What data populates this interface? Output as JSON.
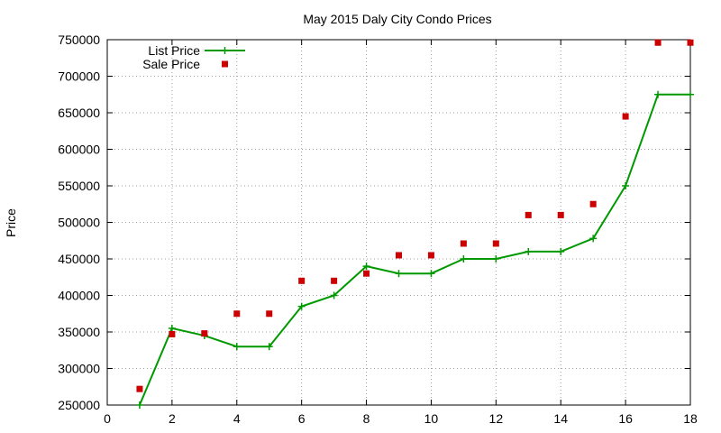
{
  "chart_data": {
    "type": "line",
    "title": "May 2015 Daly City Condo Prices",
    "xlabel": "",
    "ylabel": "Price",
    "xlim": [
      0,
      18
    ],
    "ylim": [
      250000,
      750000
    ],
    "x_ticks": [
      0,
      2,
      4,
      6,
      8,
      10,
      12,
      14,
      16,
      18
    ],
    "y_ticks": [
      250000,
      300000,
      350000,
      400000,
      450000,
      500000,
      550000,
      600000,
      650000,
      700000,
      750000
    ],
    "grid": true,
    "legend_position": "top-left",
    "series": [
      {
        "name": "List Price",
        "style": "line-with-plus-markers",
        "color": "#009900",
        "x": [
          1,
          2,
          3,
          4,
          5,
          6,
          7,
          8,
          9,
          10,
          11,
          12,
          13,
          14,
          15,
          16,
          17,
          18
        ],
        "values": [
          250000,
          355000,
          345000,
          330000,
          330000,
          385000,
          400000,
          440000,
          430000,
          430000,
          450000,
          450000,
          460000,
          460000,
          478000,
          550000,
          675000,
          675000
        ]
      },
      {
        "name": "Sale Price",
        "style": "square-points",
        "color": "#cc0000",
        "x": [
          1,
          2,
          3,
          4,
          5,
          6,
          7,
          8,
          9,
          10,
          11,
          12,
          13,
          14,
          15,
          16,
          17,
          18
        ],
        "values": [
          272000,
          347000,
          348000,
          375000,
          375000,
          420000,
          420000,
          430000,
          455000,
          455000,
          471000,
          471000,
          510000,
          510000,
          525000,
          645000,
          746000,
          746000
        ]
      }
    ]
  }
}
